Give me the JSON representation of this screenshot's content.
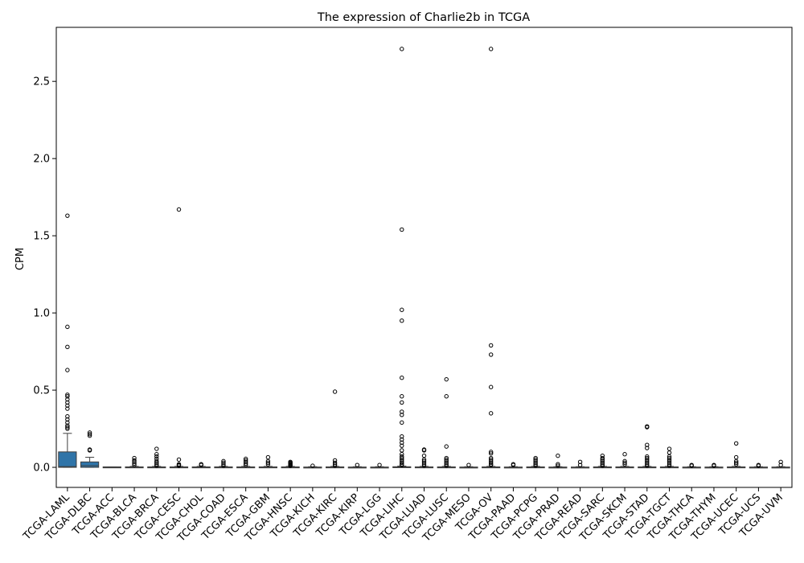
{
  "chart_data": {
    "type": "box",
    "title": "The expression of Charlie2b in TCGA",
    "xlabel": "",
    "ylabel": "CPM",
    "ylim": [
      -0.13,
      2.85
    ],
    "yticks": [
      "0.0",
      "0.5",
      "1.0",
      "1.5",
      "2.0",
      "2.5"
    ],
    "ytick_values": [
      0.0,
      0.5,
      1.0,
      1.5,
      2.0,
      2.5
    ],
    "grid": false,
    "legend": "none",
    "box_color": "#2f74a8",
    "categories": [
      "TCGA-LAML",
      "TCGA-DLBC",
      "TCGA-ACC",
      "TCGA-BLCA",
      "TCGA-BRCA",
      "TCGA-CESC",
      "TCGA-CHOL",
      "TCGA-COAD",
      "TCGA-ESCA",
      "TCGA-GBM",
      "TCGA-HNSC",
      "TCGA-KICH",
      "TCGA-KIRC",
      "TCGA-KIRP",
      "TCGA-LGG",
      "TCGA-LIHC",
      "TCGA-LUAD",
      "TCGA-LUSC",
      "TCGA-MESO",
      "TCGA-OV",
      "TCGA-PAAD",
      "TCGA-PCPG",
      "TCGA-PRAD",
      "TCGA-READ",
      "TCGA-SARC",
      "TCGA-SKCM",
      "TCGA-STAD",
      "TCGA-TGCT",
      "TCGA-THCA",
      "TCGA-THYM",
      "TCGA-UCEC",
      "TCGA-UCS",
      "TCGA-UVM"
    ],
    "boxes": [
      {
        "q1": 0.0,
        "median": 0.005,
        "q3": 0.1,
        "whisker_low": 0.0,
        "whisker_high": 0.22,
        "outliers": [
          1.63,
          0.91,
          0.78,
          0.63,
          0.47,
          0.46,
          0.44,
          0.42,
          0.4,
          0.38,
          0.33,
          0.31,
          0.29,
          0.27,
          0.26,
          0.25
        ]
      },
      {
        "q1": 0.0,
        "median": 0.01,
        "q3": 0.035,
        "whisker_low": 0.0,
        "whisker_high": 0.065,
        "outliers": [
          0.225,
          0.215,
          0.205,
          0.115,
          0.11
        ]
      },
      {
        "q1": 0.0,
        "median": 0.0,
        "q3": 0.003,
        "whisker_low": 0.0,
        "whisker_high": 0.003,
        "outliers": []
      },
      {
        "q1": 0.0,
        "median": 0.0,
        "q3": 0.003,
        "whisker_low": 0.0,
        "whisker_high": 0.006,
        "outliers": [
          0.06,
          0.045,
          0.035,
          0.025,
          0.015
        ]
      },
      {
        "q1": 0.0,
        "median": 0.0,
        "q3": 0.003,
        "whisker_low": 0.0,
        "whisker_high": 0.006,
        "outliers": [
          0.12,
          0.085,
          0.07,
          0.055,
          0.04,
          0.03,
          0.02,
          0.01
        ]
      },
      {
        "q1": 0.0,
        "median": 0.0,
        "q3": 0.003,
        "whisker_low": 0.0,
        "whisker_high": 0.006,
        "outliers": [
          1.67,
          0.05,
          0.02,
          0.015,
          0.01
        ]
      },
      {
        "q1": 0.0,
        "median": 0.0,
        "q3": 0.003,
        "whisker_low": 0.0,
        "whisker_high": 0.006,
        "outliers": [
          0.02,
          0.015
        ]
      },
      {
        "q1": 0.0,
        "median": 0.0,
        "q3": 0.003,
        "whisker_low": 0.0,
        "whisker_high": 0.006,
        "outliers": [
          0.04,
          0.03,
          0.02,
          0.01
        ]
      },
      {
        "q1": 0.0,
        "median": 0.0,
        "q3": 0.003,
        "whisker_low": 0.0,
        "whisker_high": 0.006,
        "outliers": [
          0.055,
          0.045,
          0.035,
          0.025,
          0.015
        ]
      },
      {
        "q1": 0.0,
        "median": 0.0,
        "q3": 0.003,
        "whisker_low": 0.0,
        "whisker_high": 0.006,
        "outliers": [
          0.065,
          0.04,
          0.03,
          0.02
        ]
      },
      {
        "q1": 0.0,
        "median": 0.0,
        "q3": 0.003,
        "whisker_low": 0.0,
        "whisker_high": 0.006,
        "outliers": [
          0.035,
          0.03,
          0.025,
          0.02,
          0.015,
          0.01
        ]
      },
      {
        "q1": 0.0,
        "median": 0.0,
        "q3": 0.002,
        "whisker_low": 0.0,
        "whisker_high": 0.004,
        "outliers": [
          0.01
        ]
      },
      {
        "q1": 0.0,
        "median": 0.0,
        "q3": 0.003,
        "whisker_low": 0.0,
        "whisker_high": 0.006,
        "outliers": [
          0.49,
          0.045,
          0.03,
          0.02,
          0.01
        ]
      },
      {
        "q1": 0.0,
        "median": 0.0,
        "q3": 0.002,
        "whisker_low": 0.0,
        "whisker_high": 0.004,
        "outliers": [
          0.015
        ]
      },
      {
        "q1": 0.0,
        "median": 0.0,
        "q3": 0.002,
        "whisker_low": 0.0,
        "whisker_high": 0.004,
        "outliers": [
          0.015
        ]
      },
      {
        "q1": 0.0,
        "median": 0.0,
        "q3": 0.004,
        "whisker_low": 0.0,
        "whisker_high": 0.008,
        "outliers": [
          2.71,
          1.54,
          1.02,
          0.95,
          0.58,
          0.46,
          0.42,
          0.36,
          0.34,
          0.29,
          0.2,
          0.18,
          0.16,
          0.14,
          0.11,
          0.085,
          0.07,
          0.06,
          0.05,
          0.04,
          0.03,
          0.02,
          0.015
        ]
      },
      {
        "q1": 0.0,
        "median": 0.0,
        "q3": 0.003,
        "whisker_low": 0.0,
        "whisker_high": 0.006,
        "outliers": [
          0.115,
          0.11,
          0.075,
          0.05,
          0.04,
          0.03,
          0.02,
          0.01
        ]
      },
      {
        "q1": 0.0,
        "median": 0.0,
        "q3": 0.003,
        "whisker_low": 0.0,
        "whisker_high": 0.006,
        "outliers": [
          0.57,
          0.46,
          0.135,
          0.06,
          0.05,
          0.04,
          0.03,
          0.02,
          0.01
        ]
      },
      {
        "q1": 0.0,
        "median": 0.0,
        "q3": 0.002,
        "whisker_low": 0.0,
        "whisker_high": 0.004,
        "outliers": [
          0.015
        ]
      },
      {
        "q1": 0.0,
        "median": 0.0,
        "q3": 0.003,
        "whisker_low": 0.0,
        "whisker_high": 0.006,
        "outliers": [
          2.71,
          0.79,
          0.73,
          0.52,
          0.35,
          0.1,
          0.09,
          0.06,
          0.05,
          0.04,
          0.03,
          0.02,
          0.015
        ]
      },
      {
        "q1": 0.0,
        "median": 0.0,
        "q3": 0.002,
        "whisker_low": 0.0,
        "whisker_high": 0.004,
        "outliers": [
          0.02,
          0.015
        ]
      },
      {
        "q1": 0.0,
        "median": 0.0,
        "q3": 0.003,
        "whisker_low": 0.0,
        "whisker_high": 0.006,
        "outliers": [
          0.06,
          0.05,
          0.04,
          0.03,
          0.02,
          0.01
        ]
      },
      {
        "q1": 0.0,
        "median": 0.0,
        "q3": 0.002,
        "whisker_low": 0.0,
        "whisker_high": 0.004,
        "outliers": [
          0.075,
          0.02,
          0.01
        ]
      },
      {
        "q1": 0.0,
        "median": 0.0,
        "q3": 0.002,
        "whisker_low": 0.0,
        "whisker_high": 0.004,
        "outliers": [
          0.035,
          0.015
        ]
      },
      {
        "q1": 0.0,
        "median": 0.0,
        "q3": 0.003,
        "whisker_low": 0.0,
        "whisker_high": 0.006,
        "outliers": [
          0.075,
          0.06,
          0.05,
          0.04,
          0.03,
          0.02,
          0.01
        ]
      },
      {
        "q1": 0.0,
        "median": 0.0,
        "q3": 0.003,
        "whisker_low": 0.0,
        "whisker_high": 0.006,
        "outliers": [
          0.085,
          0.04,
          0.03,
          0.02
        ]
      },
      {
        "q1": 0.0,
        "median": 0.0,
        "q3": 0.003,
        "whisker_low": 0.0,
        "whisker_high": 0.006,
        "outliers": [
          0.265,
          0.26,
          0.145,
          0.125,
          0.07,
          0.06,
          0.05,
          0.04,
          0.03,
          0.02,
          0.01
        ]
      },
      {
        "q1": 0.0,
        "median": 0.0,
        "q3": 0.003,
        "whisker_low": 0.0,
        "whisker_high": 0.006,
        "outliers": [
          0.12,
          0.095,
          0.07,
          0.06,
          0.05,
          0.04,
          0.03,
          0.02,
          0.01
        ]
      },
      {
        "q1": 0.0,
        "median": 0.0,
        "q3": 0.002,
        "whisker_low": 0.0,
        "whisker_high": 0.004,
        "outliers": [
          0.015,
          0.01
        ]
      },
      {
        "q1": 0.0,
        "median": 0.0,
        "q3": 0.002,
        "whisker_low": 0.0,
        "whisker_high": 0.004,
        "outliers": [
          0.015,
          0.01
        ]
      },
      {
        "q1": 0.0,
        "median": 0.0,
        "q3": 0.003,
        "whisker_low": 0.0,
        "whisker_high": 0.006,
        "outliers": [
          0.155,
          0.065,
          0.04,
          0.03,
          0.02
        ]
      },
      {
        "q1": 0.0,
        "median": 0.0,
        "q3": 0.002,
        "whisker_low": 0.0,
        "whisker_high": 0.004,
        "outliers": [
          0.015,
          0.01
        ]
      },
      {
        "q1": 0.0,
        "median": 0.0,
        "q3": 0.002,
        "whisker_low": 0.0,
        "whisker_high": 0.004,
        "outliers": [
          0.035,
          0.015
        ]
      }
    ]
  }
}
